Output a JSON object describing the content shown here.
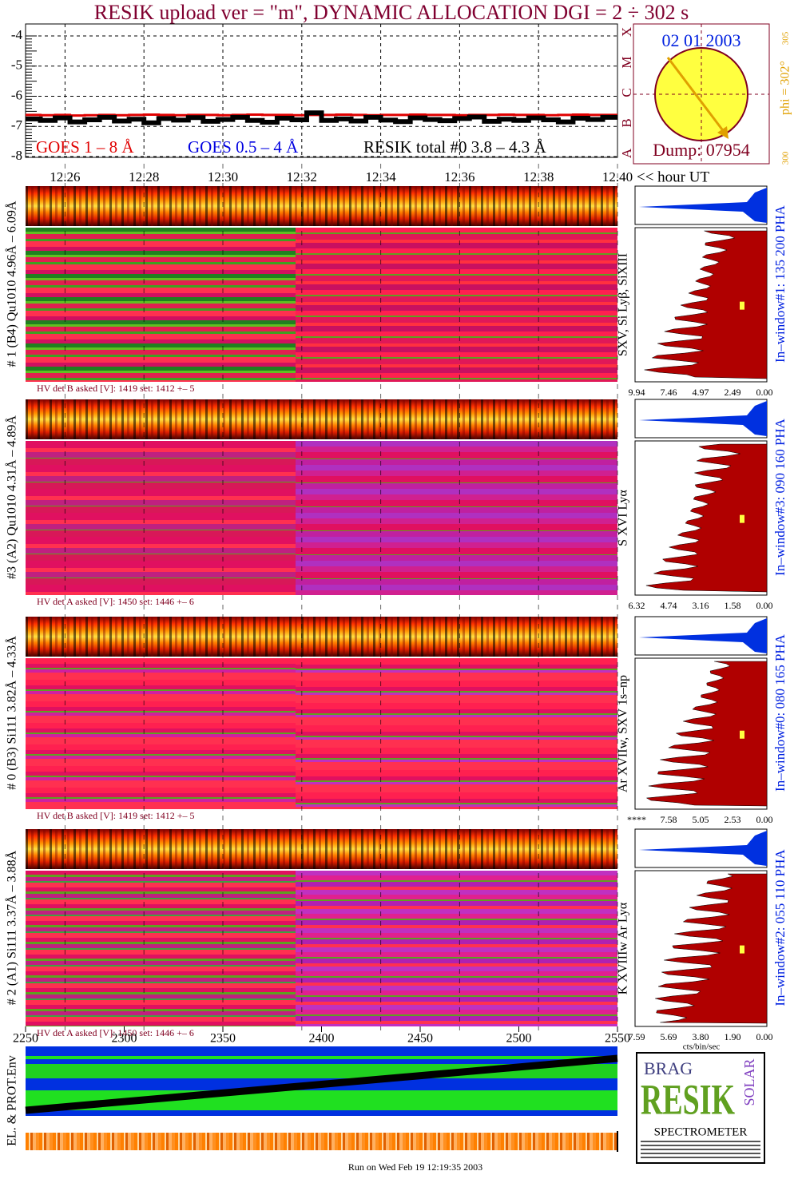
{
  "title": "RESIK upload ver = \"m\", DYNAMIC ALLOCATION  DGI =   2 ÷ 302 s",
  "lightcurve": {
    "type": "line",
    "ylim": [
      -8,
      -4
    ],
    "yticks": [
      -4,
      -5,
      -6,
      -7,
      -8
    ],
    "xlim": [
      12.25,
      12.4
    ],
    "xticks": [
      12.26,
      12.28,
      {
        "value": 12.3,
        "label": "12.30"
      },
      12.32,
      12.34,
      12.36,
      12.38,
      {
        "value": 12.4,
        "label": "12.40"
      }
    ],
    "xlabel": "<< hour UT",
    "grid": true,
    "series": [
      {
        "name": "GOES 1 – 8 Å",
        "color": "#e00000",
        "values": [
          -6.62,
          -6.63,
          -6.62,
          -6.64,
          -6.63,
          -6.62,
          -6.63,
          -6.62,
          -6.61,
          -6.62,
          -6.63,
          -6.62,
          -6.62,
          -6.63,
          -6.62,
          -6.61,
          -6.62,
          -6.62,
          -6.63,
          -6.62,
          -6.62,
          -6.61,
          -6.62,
          -6.63,
          -6.62,
          -6.62,
          -6.61,
          -6.62,
          -6.62,
          -6.63,
          -6.62,
          -6.62,
          -6.61,
          -6.62,
          -6.62,
          -6.63,
          -6.62,
          -6.61,
          -6.62,
          -6.62
        ]
      },
      {
        "name": "GOES 0.5 – 4 Å",
        "color": "#0000e0"
      },
      {
        "name": "RESIK total #0  3.8 – 4.3 Å",
        "color": "#000000",
        "values": [
          -6.75,
          -6.8,
          -6.72,
          -6.85,
          -6.78,
          -6.7,
          -6.82,
          -6.76,
          -6.88,
          -6.74,
          -6.79,
          -6.71,
          -6.83,
          -6.77,
          -6.7,
          -6.8,
          -6.86,
          -6.73,
          -6.78,
          -6.55,
          -6.8,
          -6.75,
          -6.82,
          -6.7,
          -6.79,
          -6.84,
          -6.72,
          -6.77,
          -6.81,
          -6.74,
          -6.69,
          -6.83,
          -6.76,
          -6.8,
          -6.72,
          -6.78,
          -6.85,
          -6.73,
          -6.77,
          -6.7
        ]
      }
    ]
  },
  "sun": {
    "date": "02 01 2003",
    "dump": "Dump: 07954",
    "phi": "phi = 302°",
    "phi_ticks": [
      "305",
      "300"
    ],
    "classes": [
      "X",
      "M",
      "C",
      "B",
      "A"
    ]
  },
  "panels": [
    {
      "label": "# 1 (B4) Qu1010 4.96Å – 6.09Å",
      "lines": "SXV, Si Lyβ, SiXIII",
      "window": "In–window#1:  135 200 PHA",
      "hv": "HV det B asked [V]:  1419 set:  1412 +–   5",
      "ticks": [
        9.94,
        7.46,
        4.97,
        2.49,
        {
          "value": 0,
          "label": "0.00"
        }
      ]
    },
    {
      "label": "#3 (A2) Qu1010  4.31Å – 4.89Å",
      "lines": "S XVI Lyα",
      "window": "In–window#3:  090 160 PHA",
      "hv": "HV det A asked [V]:  1450 set:  1446 +–   6",
      "ticks": [
        6.32,
        4.74,
        3.16,
        1.58,
        {
          "value": 0,
          "label": "0.00"
        }
      ]
    },
    {
      "label": "# 0 (B3) Si111  3.82Å – 4.33Å",
      "lines": "Ar XVIIw,  SXV 1s–np",
      "window": "In–window#0:  080 165 PHA",
      "hv": "HV det B asked [V]:  1419 set:  1412 +–   5",
      "ticks": [
        "****",
        7.58,
        5.05,
        2.53,
        {
          "value": 0,
          "label": "0.00"
        }
      ]
    },
    {
      "label": "# 2 (A1) Si111  3.37Å – 3.88Å",
      "lines": "K XVIIIw  Ar Lyα",
      "window": "In–window#2:  055 110 PHA",
      "hv": "HV det A asked [V]:  1450 set:  1446 +–   6",
      "ticks": [
        7.59,
        5.69,
        {
          "value": 3.8,
          "label": "3.80"
        },
        {
          "value": 1.9,
          "label": "1.90"
        },
        {
          "value": 0,
          "label": "0.00"
        }
      ]
    }
  ],
  "spectrum_unit": "cts/bin/sec",
  "bin_axis": {
    "xlim": [
      2250,
      2550
    ],
    "xticks": [
      2250,
      2300,
      2350,
      2400,
      2450,
      2500,
      2550
    ]
  },
  "env_label": "EL. & PROT.Env",
  "logo": {
    "brag": "BRAG",
    "resik": "RESIK",
    "solar": "SOLAR",
    "spectrometer": "SPECTROMETER"
  },
  "footer": "Run on Wed Feb 19 12:19:35 2003"
}
